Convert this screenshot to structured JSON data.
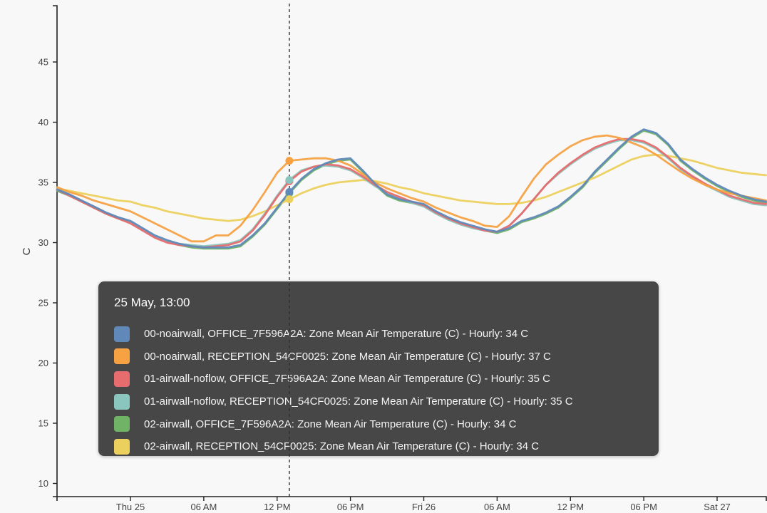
{
  "tooltip": {
    "header": "25 May, 13:00",
    "rows": [
      "00-noairwall, OFFICE_7F596A2A: Zone Mean Air Temperature (C) - Hourly: 34 C",
      "00-noairwall, RECEPTION_54CF0025: Zone Mean Air Temperature (C) - Hourly: 37 C",
      "01-airwall-noflow, OFFICE_7F596A2A: Zone Mean Air Temperature (C) - Hourly: 35 C",
      "01-airwall-noflow, RECEPTION_54CF0025: Zone Mean Air Temperature (C) - Hourly: 35 C",
      "02-airwall, OFFICE_7F596A2A: Zone Mean Air Temperature (C) - Hourly: 34 C",
      "02-airwall, RECEPTION_54CF0025: Zone Mean Air Temperature (C) - Hourly: 34 C"
    ]
  },
  "chart_data": {
    "type": "line",
    "title": "",
    "xlabel": "",
    "ylabel": "C",
    "ylim": [
      8.9,
      49.7
    ],
    "y_ticks": [
      10,
      15,
      20,
      25,
      30,
      35,
      40,
      45
    ],
    "x_hours_range": [
      -6,
      52
    ],
    "x_ticks": [
      {
        "hour": 0,
        "label": "Thu 25"
      },
      {
        "hour": 6,
        "label": "06 AM"
      },
      {
        "hour": 12,
        "label": "12 PM"
      },
      {
        "hour": 18,
        "label": "06 PM"
      },
      {
        "hour": 24,
        "label": "Fri 26"
      },
      {
        "hour": 30,
        "label": "06 AM"
      },
      {
        "hour": 36,
        "label": "12 PM"
      },
      {
        "hour": 42,
        "label": "06 PM"
      },
      {
        "hour": 48,
        "label": "Sat 27"
      }
    ],
    "hover": {
      "hour": 13,
      "label": "25 May, 13:00",
      "values_c": [
        34,
        37,
        35,
        35,
        34,
        34
      ]
    },
    "hours": [
      -6,
      -5,
      -4,
      -3,
      -2,
      -1,
      0,
      1,
      2,
      3,
      4,
      5,
      6,
      7,
      8,
      9,
      10,
      11,
      12,
      13,
      14,
      15,
      16,
      17,
      18,
      19,
      20,
      21,
      22,
      23,
      24,
      25,
      26,
      27,
      28,
      29,
      30,
      31,
      32,
      33,
      34,
      35,
      36,
      37,
      38,
      39,
      40,
      41,
      42,
      43,
      44,
      45,
      46,
      47,
      48,
      49,
      50,
      51,
      52
    ],
    "series": [
      {
        "name": "00-noairwall, OFFICE_7F596A2A: Zone Mean Air Temperature (C) - Hourly",
        "color": "#6089b9",
        "values": [
          34.4,
          34.0,
          33.5,
          33.0,
          32.5,
          32.1,
          31.8,
          31.2,
          30.6,
          30.2,
          29.9,
          29.7,
          29.6,
          29.6,
          29.6,
          29.8,
          30.6,
          31.6,
          32.9,
          34.2,
          35.3,
          36.1,
          36.6,
          36.9,
          37.0,
          36.0,
          34.9,
          34.0,
          33.6,
          33.4,
          33.2,
          32.6,
          32.1,
          31.7,
          31.4,
          31.1,
          30.9,
          31.2,
          31.8,
          32.1,
          32.5,
          33.0,
          33.8,
          34.7,
          35.9,
          36.9,
          37.9,
          38.8,
          39.4,
          39.1,
          38.2,
          36.9,
          36.1,
          35.4,
          34.8,
          34.3,
          33.9,
          33.6,
          33.4
        ]
      },
      {
        "name": "00-noairwall, RECEPTION_54CF0025: Zone Mean Air Temperature (C) - Hourly",
        "color": "#f6a142",
        "values": [
          34.6,
          34.2,
          33.9,
          33.5,
          33.2,
          32.9,
          32.6,
          32.1,
          31.6,
          31.1,
          30.6,
          30.1,
          30.1,
          30.6,
          30.6,
          31.4,
          32.7,
          34.2,
          35.8,
          36.8,
          36.9,
          37.0,
          37.0,
          36.8,
          36.4,
          35.7,
          35.0,
          34.5,
          34.1,
          33.7,
          33.4,
          32.9,
          32.5,
          32.1,
          31.8,
          31.4,
          31.3,
          32.2,
          33.8,
          35.3,
          36.5,
          37.3,
          38.0,
          38.5,
          38.8,
          38.9,
          38.7,
          38.3,
          37.9,
          37.3,
          36.6,
          35.9,
          35.3,
          34.8,
          34.4,
          34.1,
          33.9,
          33.7,
          33.5
        ]
      },
      {
        "name": "01-airwall-noflow, OFFICE_7F596A2A: Zone Mean Air Temperature (C) - Hourly",
        "color": "#e76c6e",
        "values": [
          34.4,
          33.9,
          33.4,
          32.9,
          32.4,
          32.0,
          31.6,
          31.0,
          30.4,
          30.0,
          29.8,
          29.7,
          29.6,
          29.7,
          29.8,
          30.1,
          31.0,
          32.3,
          33.8,
          35.1,
          35.9,
          36.3,
          36.5,
          36.4,
          36.1,
          35.5,
          34.8,
          34.2,
          33.8,
          33.4,
          33.1,
          32.5,
          32.0,
          31.6,
          31.3,
          31.0,
          30.9,
          31.4,
          32.4,
          33.6,
          34.8,
          35.8,
          36.6,
          37.3,
          37.9,
          38.3,
          38.6,
          38.6,
          38.4,
          37.9,
          37.1,
          36.2,
          35.5,
          34.9,
          34.4,
          33.9,
          33.6,
          33.3,
          33.2
        ]
      },
      {
        "name": "01-airwall-noflow, RECEPTION_54CF0025: Zone Mean Air Temperature (C) - Hourly",
        "color": "#8ac6bd",
        "values": [
          34.5,
          34.0,
          33.5,
          33.0,
          32.5,
          32.1,
          31.7,
          31.1,
          30.5,
          30.1,
          29.9,
          29.8,
          29.7,
          29.8,
          29.9,
          30.2,
          31.1,
          32.4,
          33.9,
          35.2,
          36.0,
          36.3,
          36.4,
          36.3,
          36.0,
          35.4,
          34.7,
          34.1,
          33.7,
          33.3,
          33.0,
          32.4,
          31.9,
          31.5,
          31.2,
          31.0,
          30.9,
          31.4,
          32.4,
          33.6,
          34.8,
          35.7,
          36.5,
          37.2,
          37.8,
          38.2,
          38.5,
          38.5,
          38.3,
          37.8,
          37.0,
          36.1,
          35.4,
          34.8,
          34.3,
          33.8,
          33.5,
          33.2,
          33.1
        ]
      },
      {
        "name": "02-airwall, OFFICE_7F596A2A: Zone Mean Air Temperature (C) - Hourly",
        "color": "#70b266",
        "values": [
          34.3,
          33.9,
          33.4,
          32.9,
          32.4,
          32.0,
          31.7,
          31.1,
          30.5,
          30.1,
          29.8,
          29.6,
          29.5,
          29.5,
          29.5,
          29.7,
          30.5,
          31.5,
          32.8,
          34.1,
          35.2,
          36.0,
          36.5,
          36.8,
          36.9,
          35.9,
          34.8,
          33.9,
          33.5,
          33.3,
          33.1,
          32.5,
          32.0,
          31.6,
          31.3,
          31.0,
          30.8,
          31.1,
          31.7,
          32.0,
          32.4,
          32.9,
          33.7,
          34.6,
          35.8,
          36.8,
          37.8,
          38.7,
          39.3,
          39.0,
          38.1,
          36.8,
          36.0,
          35.3,
          34.7,
          34.2,
          33.8,
          33.5,
          33.3
        ]
      },
      {
        "name": "02-airwall, RECEPTION_54CF0025: Zone Mean Air Temperature (C) - Hourly",
        "color": "#ecd05e",
        "values": [
          34.5,
          34.3,
          34.1,
          33.9,
          33.7,
          33.5,
          33.4,
          33.1,
          32.9,
          32.6,
          32.4,
          32.2,
          32.0,
          31.9,
          31.8,
          31.9,
          32.2,
          32.6,
          33.1,
          33.6,
          34.1,
          34.5,
          34.8,
          35.0,
          35.1,
          35.2,
          35.1,
          34.9,
          34.6,
          34.4,
          34.1,
          33.9,
          33.7,
          33.5,
          33.4,
          33.3,
          33.2,
          33.2,
          33.3,
          33.5,
          33.8,
          34.2,
          34.6,
          35.0,
          35.4,
          35.9,
          36.4,
          36.9,
          37.2,
          37.3,
          37.2,
          37.0,
          36.8,
          36.5,
          36.2,
          36.0,
          35.8,
          35.7,
          35.6
        ]
      }
    ],
    "colors": {
      "background": "#f8f8f8",
      "axis": "#222222",
      "tick_text": "#434343",
      "hover_line": "#2e2e2e",
      "tooltip_bg": "#474747"
    },
    "legend_position": "tooltip",
    "grid": false
  }
}
